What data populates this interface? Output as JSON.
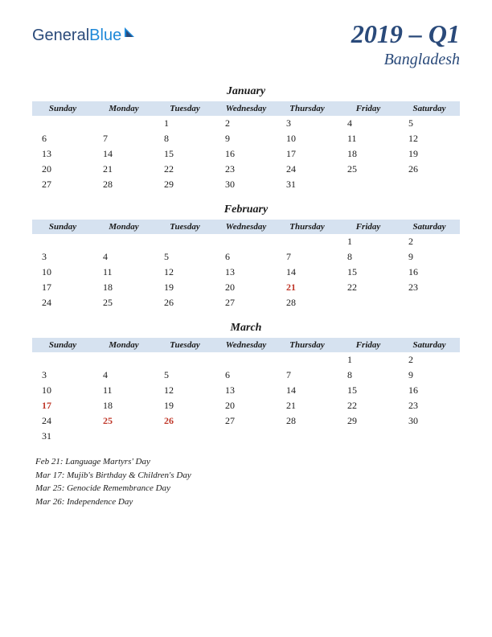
{
  "logo": {
    "part1": "General",
    "part2": "Blue"
  },
  "title": {
    "year_quarter": "2019 – Q1",
    "country": "Bangladesh"
  },
  "day_headers": [
    "Sunday",
    "Monday",
    "Tuesday",
    "Wednesday",
    "Thursday",
    "Friday",
    "Saturday"
  ],
  "months": [
    {
      "name": "January",
      "weeks": [
        [
          "",
          "",
          1,
          2,
          3,
          4,
          5
        ],
        [
          6,
          7,
          8,
          9,
          10,
          11,
          12
        ],
        [
          13,
          14,
          15,
          16,
          17,
          18,
          19
        ],
        [
          20,
          21,
          22,
          23,
          24,
          25,
          26
        ],
        [
          27,
          28,
          29,
          30,
          31,
          "",
          ""
        ]
      ],
      "holidays_idx": []
    },
    {
      "name": "February",
      "weeks": [
        [
          "",
          "",
          "",
          "",
          "",
          1,
          2
        ],
        [
          3,
          4,
          5,
          6,
          7,
          8,
          9
        ],
        [
          10,
          11,
          12,
          13,
          14,
          15,
          16
        ],
        [
          17,
          18,
          19,
          20,
          21,
          22,
          23
        ],
        [
          24,
          25,
          26,
          27,
          28,
          "",
          ""
        ]
      ],
      "holidays_idx": [
        [
          3,
          4
        ]
      ]
    },
    {
      "name": "March",
      "weeks": [
        [
          "",
          "",
          "",
          "",
          "",
          1,
          2
        ],
        [
          3,
          4,
          5,
          6,
          7,
          8,
          9
        ],
        [
          10,
          11,
          12,
          13,
          14,
          15,
          16
        ],
        [
          17,
          18,
          19,
          20,
          21,
          22,
          23
        ],
        [
          24,
          25,
          26,
          27,
          28,
          29,
          30
        ],
        [
          31,
          "",
          "",
          "",
          "",
          "",
          ""
        ]
      ],
      "holidays_idx": [
        [
          3,
          0
        ],
        [
          4,
          1
        ],
        [
          4,
          2
        ]
      ]
    }
  ],
  "holiday_notes": [
    "Feb 21: Language Martyrs' Day",
    "Mar 17: Mujib's Birthday & Children's Day",
    "Mar 25: Genocide Remembrance Day",
    "Mar 26: Independence Day"
  ],
  "colors": {
    "header_bg": "#d6e2f0",
    "title_color": "#2a4a7a",
    "holiday_color": "#c0392b",
    "text_color": "#1a1a1a"
  }
}
